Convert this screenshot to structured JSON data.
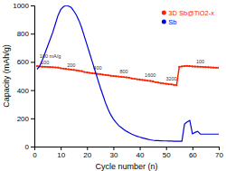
{
  "chart_data": {
    "type": "line",
    "xlabel": "Cycle number (n)",
    "ylabel": "Capacity (mAh/g)",
    "xlim": [
      0,
      70
    ],
    "ylim": [
      0,
      1000
    ],
    "xticks": [
      0,
      10,
      20,
      30,
      40,
      50,
      60,
      70
    ],
    "yticks": [
      0,
      200,
      400,
      600,
      800,
      1000
    ],
    "x": [
      1,
      2,
      3,
      4,
      5,
      6,
      7,
      8,
      9,
      10,
      11,
      12,
      13,
      14,
      15,
      16,
      17,
      18,
      19,
      20,
      21,
      22,
      23,
      24,
      25,
      26,
      27,
      28,
      29,
      30,
      31,
      32,
      33,
      34,
      35,
      36,
      37,
      38,
      39,
      40,
      41,
      42,
      43,
      44,
      45,
      46,
      47,
      48,
      49,
      50,
      51,
      52,
      53,
      54,
      55,
      56,
      57,
      58,
      59,
      60,
      61,
      62,
      63,
      64,
      65,
      66,
      67,
      68,
      69,
      70
    ],
    "series": [
      {
        "name": "3D Sb@TiO2-x",
        "color": "#ff2200",
        "marker": "circle",
        "values": [
          570,
          568,
          566,
          565,
          564,
          563,
          562,
          561,
          560,
          555,
          553,
          550,
          548,
          545,
          543,
          540,
          537,
          535,
          528,
          525,
          522,
          520,
          518,
          515,
          513,
          510,
          508,
          505,
          502,
          500,
          498,
          496,
          494,
          492,
          490,
          488,
          483,
          480,
          477,
          475,
          472,
          470,
          467,
          465,
          462,
          456,
          453,
          450,
          447,
          445,
          442,
          440,
          437,
          435,
          565,
          568,
          570,
          572,
          570,
          568,
          567,
          566,
          565,
          564,
          563,
          562,
          561,
          560,
          559,
          558
        ]
      },
      {
        "name": "Sb",
        "color": "#0000dd",
        "values": [
          548,
          570,
          610,
          660,
          710,
          760,
          810,
          870,
          930,
          970,
          990,
          1000,
          995,
          985,
          960,
          930,
          890,
          840,
          780,
          720,
          660,
          600,
          540,
          480,
          420,
          365,
          310,
          265,
          225,
          195,
          170,
          150,
          135,
          120,
          108,
          98,
          88,
          80,
          73,
          67,
          62,
          57,
          52,
          48,
          45,
          43,
          42,
          41,
          40,
          40,
          39,
          39,
          38,
          38,
          38,
          38,
          160,
          175,
          185,
          90,
          100,
          108,
          88,
          88,
          88,
          88,
          88,
          88,
          88,
          88
        ]
      }
    ],
    "annotations": [
      {
        "text": "100",
        "x": 4,
        "y": 578
      },
      {
        "text": "200",
        "x": 14,
        "y": 560
      },
      {
        "text": "400",
        "x": 24,
        "y": 535
      },
      {
        "text": "800",
        "x": 34,
        "y": 510
      },
      {
        "text": "1600",
        "x": 44,
        "y": 485
      },
      {
        "text": "3200",
        "x": 52,
        "y": 458
      },
      {
        "text": "100",
        "x": 63,
        "y": 583
      },
      {
        "text": "100 mA/g",
        "x": 2,
        "y": 620
      }
    ],
    "legend": "upper right"
  }
}
